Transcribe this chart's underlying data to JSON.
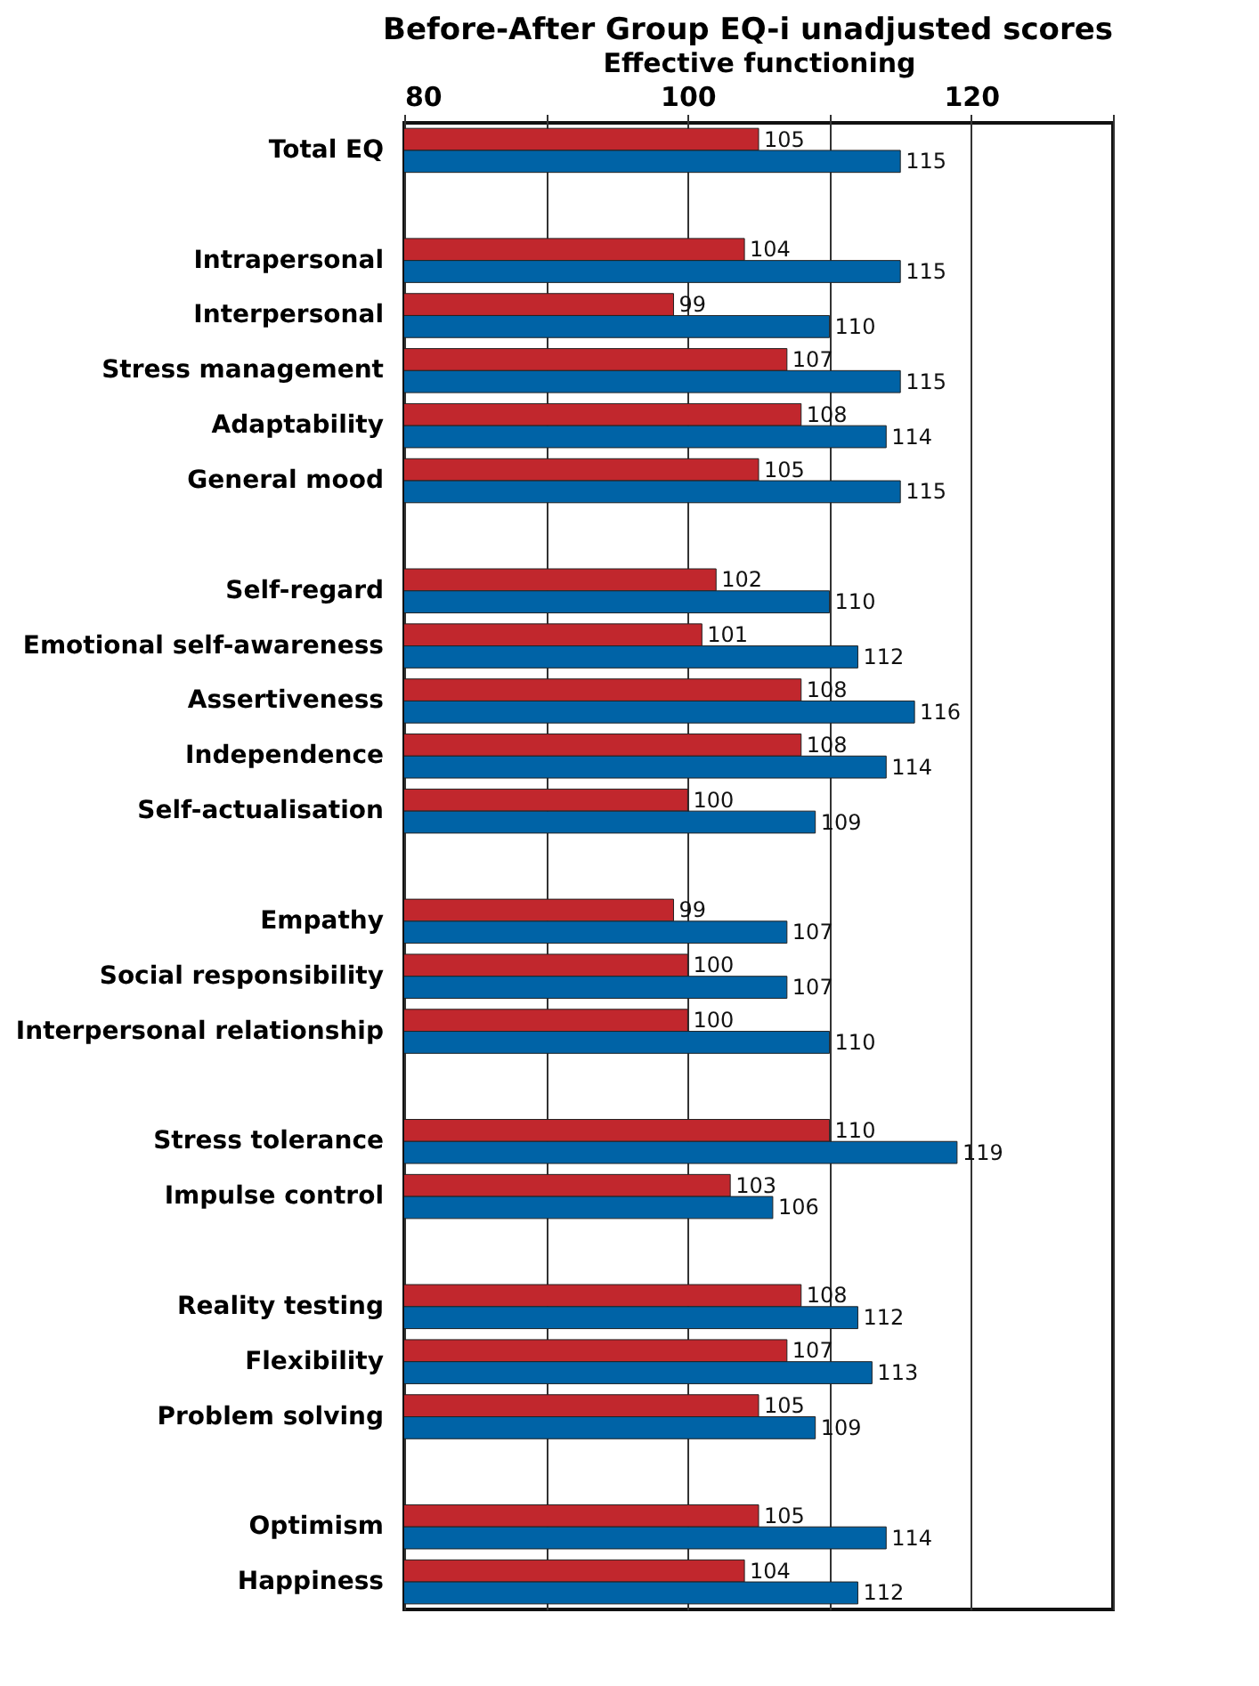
{
  "chart_data": {
    "type": "bar",
    "orientation": "horizontal",
    "title": "Before-After Group EQ-i unadjusted scores",
    "xlabel": "Effective functioning",
    "categories": [
      "Total EQ",
      null,
      "Intrapersonal",
      "Interpersonal",
      "Stress management",
      "Adaptability",
      "General mood",
      null,
      "Self-regard",
      "Emotional self-awareness",
      "Assertiveness",
      "Independence",
      "Self-actualisation",
      null,
      "Empathy",
      "Social responsibility",
      "Interpersonal relationship",
      null,
      "Stress tolerance",
      "Impulse control",
      null,
      "Reality testing",
      "Flexibility",
      "Problem solving",
      null,
      "Optimism",
      "Happiness"
    ],
    "series": [
      {
        "color": "#c1272d",
        "values": [
          105,
          null,
          104,
          99,
          107,
          108,
          105,
          null,
          102,
          101,
          108,
          108,
          100,
          null,
          99,
          100,
          100,
          null,
          110,
          103,
          null,
          108,
          107,
          105,
          null,
          105,
          104
        ]
      },
      {
        "color": "#0063a6",
        "values": [
          115,
          null,
          115,
          110,
          115,
          114,
          115,
          null,
          110,
          112,
          116,
          114,
          109,
          null,
          107,
          107,
          110,
          null,
          119,
          106,
          null,
          112,
          113,
          109,
          null,
          114,
          112
        ]
      }
    ],
    "xlim": [
      80,
      130
    ],
    "xticks": [
      80,
      {
        "value": 90,
        "label": null
      },
      100,
      {
        "value": 110,
        "label": null
      },
      120,
      {
        "value": 130,
        "label": null
      }
    ],
    "grid": "x",
    "legend": false,
    "data_labels": true
  }
}
